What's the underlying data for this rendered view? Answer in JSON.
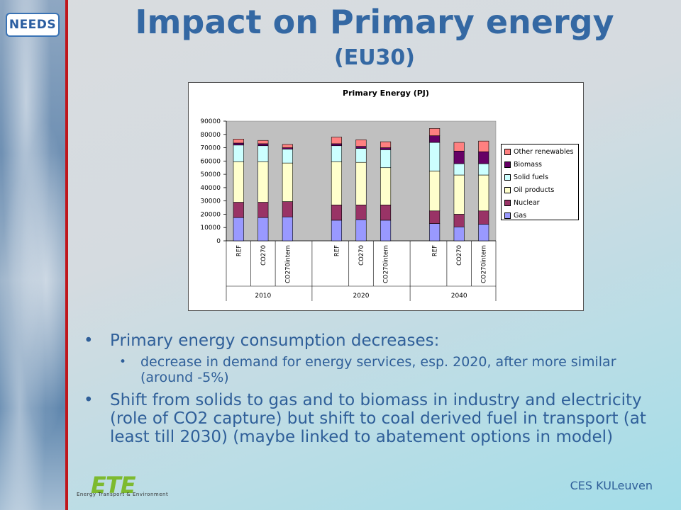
{
  "logo": {
    "text": "NEEDS"
  },
  "title": {
    "line1": "Impact on Primary energy",
    "line2": "(EU30)"
  },
  "bullets": {
    "main1": "Primary energy consumption decreases:",
    "sub1": "decrease in demand for energy services, esp. 2020, after more similar (around -5%)",
    "main2": "Shift from solids to gas and to biomass in industry and electricity (role of CO2 capture) but shift to coal derived fuel in transport (at least till 2030) (maybe linked to abatement options in model)"
  },
  "footer": {
    "right": "CES KULeuven",
    "ete_big": "ETE",
    "ete_small": "Energy Transport & Environment"
  },
  "chart_data": {
    "type": "bar",
    "stacked": true,
    "title": "Primary Energy (PJ)",
    "ylim": [
      0,
      90000
    ],
    "yticks": [
      0,
      10000,
      20000,
      30000,
      40000,
      50000,
      60000,
      70000,
      80000,
      90000
    ],
    "groups": [
      "2010",
      "2020",
      "2040"
    ],
    "categories": [
      "REF",
      "CO270",
      "CO270intern",
      "REF",
      "CO270",
      "CO270intern",
      "REF",
      "CO270",
      "CO270intern"
    ],
    "legend_position": "right",
    "grid": false,
    "series": [
      {
        "name": "Gas",
        "color": "#9999ff",
        "values": [
          17500,
          17500,
          18000,
          15500,
          16000,
          15500,
          13000,
          10500,
          12500
        ]
      },
      {
        "name": "Nuclear",
        "color": "#993366",
        "values": [
          11500,
          11500,
          11500,
          11500,
          11000,
          11500,
          9500,
          9500,
          10000
        ]
      },
      {
        "name": "Oil products",
        "color": "#ffffcc",
        "values": [
          30500,
          30500,
          29000,
          32500,
          32000,
          28000,
          30000,
          29500,
          27000
        ]
      },
      {
        "name": "Solid fuels",
        "color": "#ccffff",
        "values": [
          12500,
          12000,
          10500,
          12000,
          10500,
          13500,
          21500,
          8500,
          8500
        ]
      },
      {
        "name": "Biomass",
        "color": "#660066",
        "values": [
          1500,
          1500,
          1000,
          1500,
          1500,
          1500,
          5000,
          9500,
          9000
        ]
      },
      {
        "name": "Other renewables",
        "color": "#ff8080",
        "values": [
          3000,
          2500,
          2500,
          5000,
          5000,
          4500,
          5500,
          6500,
          8000
        ]
      }
    ]
  }
}
